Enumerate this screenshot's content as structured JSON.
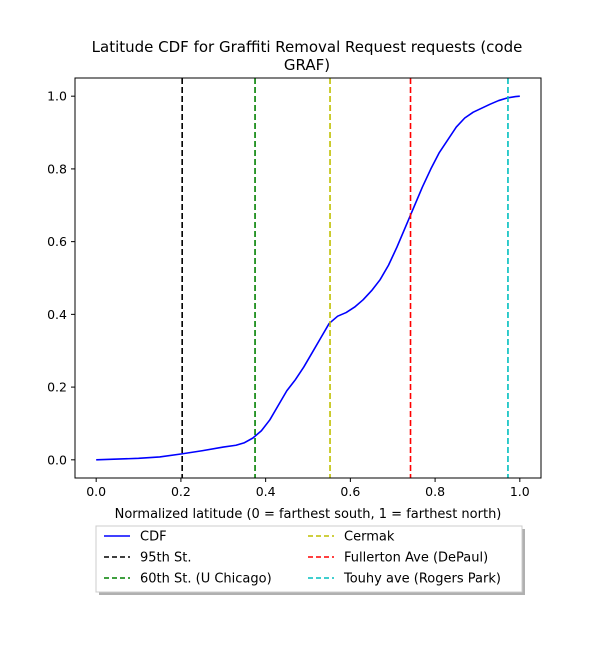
{
  "chart_data": {
    "type": "line",
    "title": "Latitude CDF for Graffiti Removal Request  requests (code GRAF)",
    "title_lines": [
      "Latitude CDF for Graffiti Removal Request  requests (code",
      "GRAF)"
    ],
    "xlabel": "Normalized latitude (0 = farthest south, 1 = farthest north)",
    "ylabel": "",
    "xlim": [
      -0.05,
      1.05
    ],
    "ylim": [
      -0.05,
      1.05
    ],
    "xticks": [
      0.0,
      0.2,
      0.4,
      0.6,
      0.8,
      1.0
    ],
    "yticks": [
      0.0,
      0.2,
      0.4,
      0.6,
      0.8,
      1.0
    ],
    "xtick_labels": [
      "0.0",
      "0.2",
      "0.4",
      "0.6",
      "0.8",
      "1.0"
    ],
    "ytick_labels": [
      "0.0",
      "0.2",
      "0.4",
      "0.6",
      "0.8",
      "1.0"
    ],
    "grid": false,
    "legend_placement": "below plot, two columns",
    "series": [
      {
        "name": "CDF",
        "color": "#0000ff",
        "style": "solid",
        "x": [
          0.0,
          0.05,
          0.1,
          0.15,
          0.2,
          0.25,
          0.3,
          0.33,
          0.35,
          0.37,
          0.39,
          0.41,
          0.43,
          0.45,
          0.47,
          0.49,
          0.51,
          0.53,
          0.55,
          0.57,
          0.59,
          0.61,
          0.63,
          0.65,
          0.67,
          0.69,
          0.71,
          0.73,
          0.75,
          0.77,
          0.79,
          0.81,
          0.83,
          0.85,
          0.87,
          0.89,
          0.91,
          0.93,
          0.95,
          0.97,
          0.99,
          1.0
        ],
        "y": [
          0.0,
          0.002,
          0.004,
          0.008,
          0.016,
          0.025,
          0.035,
          0.04,
          0.047,
          0.06,
          0.08,
          0.11,
          0.15,
          0.19,
          0.22,
          0.255,
          0.295,
          0.335,
          0.375,
          0.395,
          0.405,
          0.42,
          0.44,
          0.465,
          0.495,
          0.535,
          0.585,
          0.64,
          0.695,
          0.75,
          0.8,
          0.845,
          0.88,
          0.915,
          0.94,
          0.956,
          0.967,
          0.978,
          0.988,
          0.995,
          0.999,
          1.0
        ]
      },
      {
        "name": "95th St.",
        "color": "#000000",
        "style": "dashed",
        "vline_x": 0.203
      },
      {
        "name": "60th St. (U Chicago)",
        "color": "#008000",
        "style": "dashed",
        "vline_x": 0.375
      },
      {
        "name": "Cermak",
        "color": "#bfbf00",
        "style": "dashed",
        "vline_x": 0.552
      },
      {
        "name": "Fullerton Ave (DePaul)",
        "color": "#ff0000",
        "style": "dashed",
        "vline_x": 0.742
      },
      {
        "name": "Touhy ave (Rogers Park)",
        "color": "#00bfbf",
        "style": "dashed",
        "vline_x": 0.972
      }
    ]
  }
}
